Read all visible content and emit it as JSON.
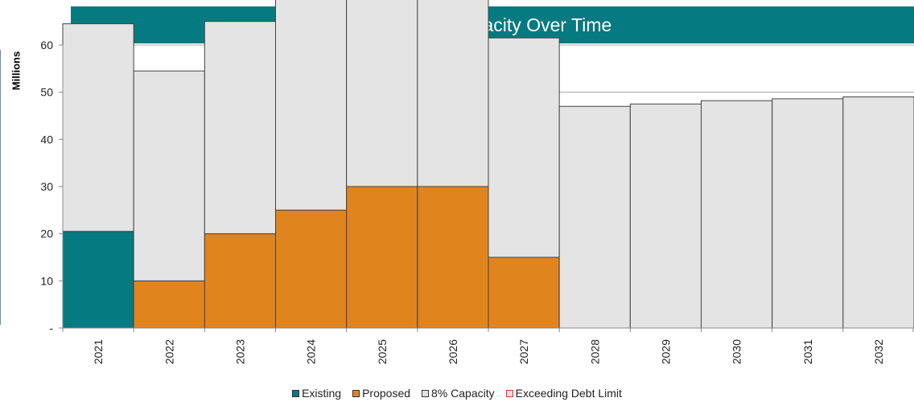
{
  "chart_data": {
    "type": "bar",
    "title": "8% Debt Capacity Over Time",
    "ylabel": "Millions",
    "xlabel": "",
    "ylim": [
      0,
      60
    ],
    "yticks": [
      0,
      10,
      20,
      30,
      40,
      50,
      60
    ],
    "ytick_labels": [
      "-",
      "10",
      "20",
      "30",
      "40",
      "50",
      "60"
    ],
    "categories": [
      "2021",
      "2022",
      "2023",
      "2024",
      "2025",
      "2026",
      "2027",
      "2028",
      "2029",
      "2030",
      "2031",
      "2032"
    ],
    "grid": true,
    "legend_position": "bottom",
    "series": [
      {
        "name": "Existing",
        "color": "#057a80",
        "values": [
          20.5,
          0,
          0,
          0,
          0,
          0,
          0,
          0,
          0,
          0,
          0,
          0
        ]
      },
      {
        "name": "Proposed",
        "color": "#e0841e",
        "values": [
          0,
          10,
          20,
          25,
          30,
          30,
          15,
          0,
          0,
          0,
          0,
          0
        ]
      },
      {
        "name": "8% Capacity",
        "color": "#e4e4e4",
        "values": [
          44,
          44.5,
          45,
          45.4,
          45.6,
          46,
          46.5,
          47,
          47.5,
          48.2,
          48.6,
          49
        ]
      },
      {
        "name": "Exceeding Debt Limit",
        "color": "#fbd6d6",
        "border": "#e03030",
        "values": [
          0,
          0,
          0,
          0,
          0,
          0,
          0,
          0,
          0,
          0,
          0,
          0
        ]
      }
    ]
  }
}
